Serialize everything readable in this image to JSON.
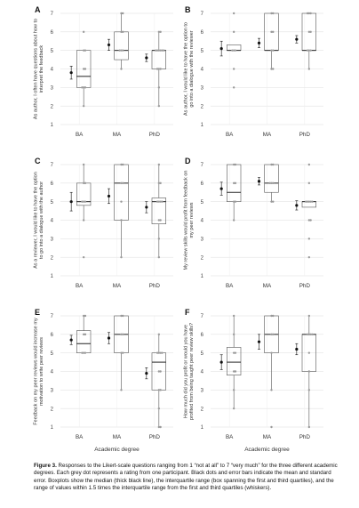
{
  "chart_data": [
    {
      "panel": "A",
      "type": "box",
      "ylabel": "As author, I often have questions about how to interpret the feedback",
      "categories": [
        "BA",
        "MA",
        "PhD"
      ],
      "ylim": [
        1,
        7
      ],
      "yticks": [
        1,
        2,
        3,
        4,
        5,
        6,
        7
      ],
      "boxes": [
        {
          "group": "BA",
          "whisker_low": 2,
          "q1": 3,
          "median": 3.6,
          "q3": 5,
          "whisker_high": 5,
          "mean": 3.8,
          "se": 0.35
        },
        {
          "group": "MA",
          "whisker_low": 4,
          "q1": 4.5,
          "median": 5,
          "q3": 6,
          "whisker_high": 7,
          "mean": 5.3,
          "se": 0.3
        },
        {
          "group": "PhD",
          "whisker_low": 2,
          "q1": 4,
          "median": 5,
          "q3": 5,
          "whisker_high": 6,
          "mean": 4.6,
          "se": 0.2
        }
      ],
      "points": [
        {
          "group": "BA",
          "values": [
            2,
            3,
            3,
            3,
            4,
            4,
            5,
            5,
            6
          ]
        },
        {
          "group": "MA",
          "values": [
            4,
            5,
            5,
            5,
            6,
            6,
            7,
            7
          ]
        },
        {
          "group": "PhD",
          "values": [
            2,
            3,
            4,
            4,
            4,
            5,
            5,
            5,
            5,
            5,
            5,
            6,
            6
          ]
        }
      ]
    },
    {
      "panel": "B",
      "type": "box",
      "ylabel": "As author, I would like to have the option to go into a dialogue with the reviewer",
      "categories": [
        "BA",
        "MA",
        "PhD"
      ],
      "ylim": [
        1,
        7
      ],
      "yticks": [
        1,
        2,
        3,
        4,
        5,
        6,
        7
      ],
      "boxes": [
        {
          "group": "BA",
          "whisker_low": 5,
          "q1": 5,
          "median": 5,
          "q3": 5.3,
          "whisker_high": 5.3,
          "mean": 5.1,
          "se": 0.4
        },
        {
          "group": "MA",
          "whisker_low": 4,
          "q1": 5,
          "median": 5,
          "q3": 7,
          "whisker_high": 7,
          "mean": 5.4,
          "se": 0.25
        },
        {
          "group": "PhD",
          "whisker_low": 4,
          "q1": 5,
          "median": 5,
          "q3": 7,
          "whisker_high": 7,
          "mean": 5.6,
          "se": 0.2
        }
      ],
      "points": [
        {
          "group": "BA",
          "values": [
            3,
            4,
            5,
            5,
            5,
            6,
            7
          ]
        },
        {
          "group": "MA",
          "values": [
            4,
            4,
            5,
            5,
            6,
            6,
            7,
            7
          ]
        },
        {
          "group": "PhD",
          "values": [
            4,
            5,
            5,
            5,
            6,
            6,
            7,
            7,
            7
          ]
        }
      ]
    },
    {
      "panel": "C",
      "type": "box",
      "ylabel": "As a reviewer, I would like to have the option to go into a dialogue with the author",
      "categories": [
        "BA",
        "MA",
        "PhD"
      ],
      "ylim": [
        1,
        7
      ],
      "yticks": [
        1,
        2,
        3,
        4,
        5,
        6,
        7
      ],
      "boxes": [
        {
          "group": "BA",
          "whisker_low": 4,
          "q1": 4.8,
          "median": 5,
          "q3": 6,
          "whisker_high": 7,
          "mean": 5,
          "se": 0.5
        },
        {
          "group": "MA",
          "whisker_low": 2,
          "q1": 4,
          "median": 6,
          "q3": 7,
          "whisker_high": 7,
          "mean": 5.3,
          "se": 0.4
        },
        {
          "group": "PhD",
          "whisker_low": 2,
          "q1": 3.8,
          "median": 5,
          "q3": 5.2,
          "whisker_high": 7,
          "mean": 4.7,
          "se": 0.3
        }
      ],
      "points": [
        {
          "group": "BA",
          "values": [
            2,
            4,
            5,
            5,
            5,
            6,
            6,
            7
          ]
        },
        {
          "group": "MA",
          "values": [
            2,
            4,
            5,
            6,
            6,
            7,
            7
          ]
        },
        {
          "group": "PhD",
          "values": [
            2,
            3,
            4,
            4,
            5,
            5,
            5,
            5,
            6,
            6,
            7
          ]
        }
      ]
    },
    {
      "panel": "D",
      "type": "box",
      "ylabel": "My review skills would profit from feedback on my peer reviews",
      "categories": [
        "BA",
        "MA",
        "PhD"
      ],
      "ylim": [
        1,
        7
      ],
      "yticks": [
        1,
        2,
        3,
        4,
        5,
        6,
        7
      ],
      "boxes": [
        {
          "group": "BA",
          "whisker_low": 4,
          "q1": 5,
          "median": 5.5,
          "q3": 7,
          "whisker_high": 7,
          "mean": 5.7,
          "se": 0.35
        },
        {
          "group": "MA",
          "whisker_low": 5,
          "q1": 5.5,
          "median": 6,
          "q3": 7,
          "whisker_high": 7,
          "mean": 6.1,
          "se": 0.2
        },
        {
          "group": "PhD",
          "whisker_low": 4.7,
          "q1": 4.7,
          "median": 5,
          "q3": 5,
          "whisker_high": 5,
          "mean": 4.8,
          "se": 0.25
        }
      ],
      "points": [
        {
          "group": "BA",
          "values": [
            4,
            5,
            5,
            6,
            6,
            7,
            7
          ]
        },
        {
          "group": "MA",
          "values": [
            5,
            5,
            6,
            6,
            6,
            7,
            7
          ]
        },
        {
          "group": "PhD",
          "values": [
            2,
            3,
            4,
            4,
            5,
            5,
            5,
            5,
            5,
            6,
            7
          ]
        }
      ]
    },
    {
      "panel": "E",
      "type": "box",
      "ylabel": "Feedback on my peer reviews would increase my motivation to write peer reviews",
      "xlabel": "Academic degree",
      "categories": [
        "BA",
        "MA",
        "PhD"
      ],
      "ylim": [
        1,
        7
      ],
      "yticks": [
        1,
        2,
        3,
        4,
        5,
        6,
        7
      ],
      "boxes": [
        {
          "group": "BA",
          "whisker_low": 5,
          "q1": 5,
          "median": 5.5,
          "q3": 6.2,
          "whisker_high": 7,
          "mean": 5.7,
          "se": 0.25
        },
        {
          "group": "MA",
          "whisker_low": 3,
          "q1": 5,
          "median": 6,
          "q3": 7,
          "whisker_high": 7,
          "mean": 5.8,
          "se": 0.3
        },
        {
          "group": "PhD",
          "whisker_low": 1,
          "q1": 3,
          "median": 4.5,
          "q3": 5,
          "whisker_high": 6,
          "mean": 3.9,
          "se": 0.3
        }
      ],
      "points": [
        {
          "group": "BA",
          "values": [
            5,
            5,
            5,
            6,
            6,
            7,
            7
          ]
        },
        {
          "group": "MA",
          "values": [
            3,
            5,
            5,
            6,
            6,
            7,
            7
          ]
        },
        {
          "group": "PhD",
          "values": [
            1,
            1,
            2,
            3,
            3,
            4,
            4,
            5,
            5,
            5,
            5,
            6
          ]
        }
      ]
    },
    {
      "panel": "F",
      "type": "box",
      "ylabel": "How much did you profit or would you have profited from being taught peer review skills?",
      "xlabel": "Academic degree",
      "categories": [
        "BA",
        "MA",
        "PhD"
      ],
      "ylim": [
        1,
        7
      ],
      "yticks": [
        1,
        2,
        3,
        4,
        5,
        6,
        7
      ],
      "boxes": [
        {
          "group": "BA",
          "whisker_low": 2,
          "q1": 3.8,
          "median": 4.5,
          "q3": 5.3,
          "whisker_high": 7,
          "mean": 4.5,
          "se": 0.4
        },
        {
          "group": "MA",
          "whisker_low": 3,
          "q1": 5,
          "median": 6,
          "q3": 7,
          "whisker_high": 7,
          "mean": 5.6,
          "se": 0.4
        },
        {
          "group": "PhD",
          "whisker_low": 1,
          "q1": 4,
          "median": 6,
          "q3": 6,
          "whisker_high": 7,
          "mean": 5.2,
          "se": 0.3
        }
      ],
      "points": [
        {
          "group": "BA",
          "values": [
            2,
            3,
            4,
            4,
            5,
            5,
            6,
            7
          ]
        },
        {
          "group": "MA",
          "values": [
            1,
            3,
            5,
            6,
            6,
            7,
            7
          ]
        },
        {
          "group": "PhD",
          "values": [
            1,
            3,
            4,
            5,
            6,
            6,
            6,
            6,
            7
          ]
        }
      ]
    }
  ],
  "caption": {
    "label": "Figure 3.",
    "text": "Responses to the Likert-scale questions ranging from 1 “not at all” to 7 “very much” for the three different academic degrees. Each grey dot represents a rating from one participant. Black dots and error bars indicate the mean and standard error. Boxplots show the median (thick black line), the interquartile range (box spanning the first and third quartiles), and the range of values within 1.5 times the interquartile range from the first and third quartiles (whiskers)."
  }
}
